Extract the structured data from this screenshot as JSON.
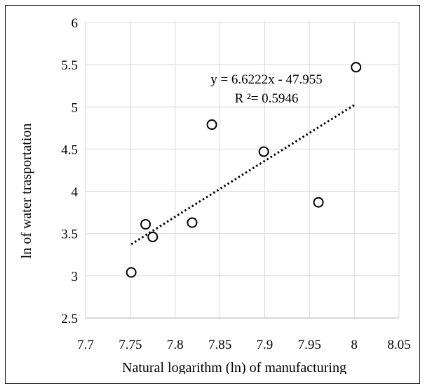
{
  "chart_data": {
    "type": "scatter",
    "title": "",
    "xlabel": "Natural logarithm (ln) of manufacturing",
    "ylabel": "ln of water trasportation",
    "xlim": [
      7.7,
      8.05
    ],
    "ylim": [
      2.5,
      6
    ],
    "x_ticks": [
      "7.7",
      "7.75",
      "7.8",
      "7.85",
      "7.9",
      "7.95",
      "8",
      "8.05"
    ],
    "y_ticks": [
      "2.5",
      "3",
      "3.5",
      "4",
      "4.5",
      "5",
      "5.5",
      "6"
    ],
    "grid": true,
    "points": [
      {
        "x": 7.751,
        "y": 3.04
      },
      {
        "x": 7.767,
        "y": 3.61
      },
      {
        "x": 7.775,
        "y": 3.46
      },
      {
        "x": 7.819,
        "y": 3.63
      },
      {
        "x": 7.841,
        "y": 4.79
      },
      {
        "x": 7.899,
        "y": 4.47
      },
      {
        "x": 7.96,
        "y": 3.87
      },
      {
        "x": 8.002,
        "y": 5.47
      }
    ],
    "trendline": {
      "slope": 6.6222,
      "intercept": -47.955,
      "x_range": [
        7.751,
        8.002
      ],
      "equation": "y = 6.6222x - 47.955",
      "r_squared": "R ²= 0.5946"
    },
    "colors": {
      "grid": "#d9d9d9",
      "marker_stroke": "#000000",
      "marker_fill": "#ffffff",
      "trendline": "#000000"
    }
  }
}
